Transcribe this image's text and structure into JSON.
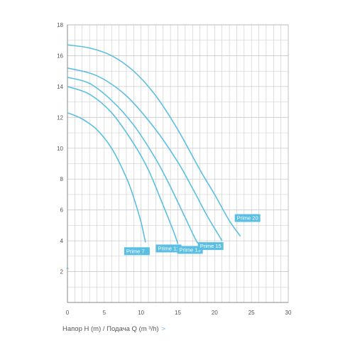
{
  "colors": {
    "curve": "#5bbfe3",
    "label_bg": "#5bbfe3",
    "label_text": "#ffffff",
    "grid": "#c9c9c9",
    "axis_text": "#555555"
  },
  "axis_caption": {
    "text": "Напор H (m) /  Подача Q (m ³/h)",
    "arrow": ">",
    "top_arrow": "^"
  },
  "chart_data": {
    "type": "line",
    "xlim": [
      0,
      30
    ],
    "ylim": [
      0,
      18
    ],
    "x_ticks": [
      0,
      5,
      10,
      15,
      20,
      25,
      30
    ],
    "y_ticks": [
      2,
      4,
      6,
      8,
      10,
      12,
      14,
      16,
      18
    ],
    "grid": true,
    "series": [
      {
        "name": "Prime 7",
        "points": [
          [
            0,
            12.3
          ],
          [
            2,
            11.9
          ],
          [
            4,
            11.2
          ],
          [
            6,
            10.0
          ],
          [
            8,
            8.1
          ],
          [
            9,
            6.8
          ],
          [
            10,
            5.2
          ],
          [
            10.6,
            3.9
          ]
        ]
      },
      {
        "name": "Prime 11",
        "points": [
          [
            0,
            14.0
          ],
          [
            3,
            13.5
          ],
          [
            6,
            12.3
          ],
          [
            9,
            10.3
          ],
          [
            11,
            8.6
          ],
          [
            13,
            6.3
          ],
          [
            14.5,
            4.5
          ],
          [
            15,
            3.8
          ]
        ]
      },
      {
        "name": "Prime 13",
        "points": [
          [
            0,
            14.6
          ],
          [
            3,
            14.2
          ],
          [
            6,
            13.1
          ],
          [
            9,
            11.5
          ],
          [
            12,
            9.3
          ],
          [
            14,
            7.5
          ],
          [
            16,
            5.5
          ],
          [
            17.5,
            4.0
          ],
          [
            18,
            3.8
          ]
        ]
      },
      {
        "name": "Prime 15",
        "points": [
          [
            0,
            15.2
          ],
          [
            4,
            14.7
          ],
          [
            8,
            13.4
          ],
          [
            12,
            11.2
          ],
          [
            15,
            9.1
          ],
          [
            17,
            7.4
          ],
          [
            19,
            5.6
          ],
          [
            20.5,
            4.4
          ],
          [
            21,
            4.0
          ]
        ]
      },
      {
        "name": "Prime 20",
        "points": [
          [
            0,
            16.7
          ],
          [
            3,
            16.5
          ],
          [
            6,
            16.0
          ],
          [
            9,
            15.0
          ],
          [
            12,
            13.4
          ],
          [
            15,
            11.2
          ],
          [
            18,
            8.6
          ],
          [
            20,
            7.0
          ],
          [
            22,
            5.3
          ],
          [
            23.5,
            4.3
          ]
        ]
      }
    ]
  }
}
